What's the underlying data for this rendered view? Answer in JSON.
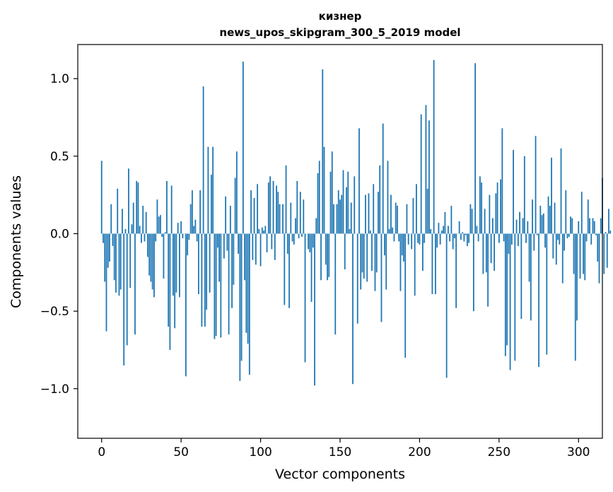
{
  "chart_data": {
    "type": "bar",
    "title_line1": "кизнер",
    "title_line2": "news_upos_skipgram_300_5_2019 model",
    "xlabel": "Vector components",
    "ylabel": "Components values",
    "xlim": [
      -15,
      315
    ],
    "ylim": [
      -1.32,
      1.22
    ],
    "xticks": [
      {
        "v": 0,
        "label": "0"
      },
      {
        "v": 50,
        "label": "50"
      },
      {
        "v": 100,
        "label": "100"
      },
      {
        "v": 150,
        "label": "150"
      },
      {
        "v": 200,
        "label": "200"
      },
      {
        "v": 250,
        "label": "250"
      },
      {
        "v": 300,
        "label": "300"
      }
    ],
    "yticks": [
      {
        "v": -1.0,
        "label": "−1.0"
      },
      {
        "v": -0.5,
        "label": "−0.5"
      },
      {
        "v": 0.0,
        "label": "0.0"
      },
      {
        "v": 0.5,
        "label": "0.5"
      },
      {
        "v": 1.0,
        "label": "1.0"
      }
    ],
    "bar_color": "#1f77b4",
    "values": [
      0.47,
      -0.06,
      -0.31,
      -0.63,
      -0.22,
      -0.18,
      0.19,
      -0.08,
      -0.3,
      -0.38,
      0.29,
      -0.4,
      -0.36,
      0.16,
      -0.85,
      0.03,
      -0.72,
      0.42,
      -0.35,
      0.06,
      0.2,
      -0.65,
      0.34,
      0.33,
      0.05,
      -0.06,
      0.18,
      -0.05,
      0.14,
      -0.15,
      -0.27,
      -0.31,
      -0.36,
      -0.41,
      -0.05,
      0.22,
      0.11,
      0.12,
      -0.02,
      -0.29,
      0.01,
      0.34,
      -0.6,
      -0.75,
      0.31,
      -0.4,
      -0.61,
      -0.38,
      0.07,
      -0.41,
      0.08,
      -0.03,
      0.0,
      -0.92,
      -0.14,
      -0.04,
      0.19,
      0.28,
      0.05,
      0.09,
      -0.05,
      -0.39,
      0.28,
      -0.6,
      0.95,
      -0.6,
      -0.49,
      0.56,
      -0.38,
      0.38,
      0.56,
      -0.68,
      -0.66,
      -0.09,
      -0.31,
      -0.67,
      0.0,
      -0.16,
      0.24,
      -0.11,
      -0.65,
      0.18,
      -0.48,
      -0.33,
      0.36,
      0.53,
      -0.13,
      -0.95,
      -0.82,
      1.11,
      -0.3,
      -0.64,
      -0.71,
      -0.91,
      0.28,
      -0.17,
      0.23,
      -0.2,
      0.32,
      0.03,
      -0.21,
      0.04,
      0.02,
      0.05,
      -0.12,
      0.33,
      0.37,
      -0.1,
      0.34,
      -0.17,
      0.31,
      0.27,
      0.19,
      0.0,
      0.19,
      -0.46,
      0.44,
      -0.13,
      -0.48,
      0.2,
      -0.05,
      -0.07,
      0.1,
      0.34,
      -0.03,
      0.27,
      -0.02,
      0.22,
      -0.83,
      0.0,
      -0.1,
      -0.12,
      -0.44,
      -0.09,
      -0.98,
      0.1,
      0.39,
      0.47,
      -0.3,
      1.06,
      0.56,
      -0.2,
      -0.3,
      -0.28,
      0.4,
      0.53,
      0.19,
      -0.65,
      0.19,
      0.28,
      0.22,
      0.25,
      0.41,
      -0.23,
      0.3,
      0.4,
      0.03,
      0.2,
      -0.97,
      0.37,
      0.0,
      -0.58,
      0.68,
      -0.36,
      -0.25,
      -0.29,
      0.25,
      -0.31,
      0.26,
      0.02,
      -0.24,
      0.32,
      -0.37,
      -0.25,
      0.27,
      0.44,
      -0.57,
      0.71,
      -0.14,
      -0.36,
      0.47,
      0.03,
      0.25,
      0.04,
      -0.05,
      0.2,
      0.18,
      -0.05,
      -0.37,
      -0.14,
      -0.18,
      -0.8,
      0.19,
      -0.07,
      0.0,
      -0.1,
      0.23,
      -0.4,
      0.32,
      -0.06,
      -0.07,
      0.77,
      -0.24,
      -0.06,
      0.83,
      0.29,
      0.73,
      0.03,
      -0.39,
      1.12,
      -0.39,
      -0.09,
      0.07,
      -0.07,
      0.02,
      0.05,
      0.14,
      -0.93,
      0.05,
      -0.05,
      0.18,
      -0.1,
      -0.03,
      -0.48,
      0.0,
      0.08,
      -0.04,
      0.01,
      -0.05,
      -0.01,
      -0.08,
      -0.06,
      0.19,
      0.16,
      -0.5,
      1.1,
      0.05,
      -0.05,
      0.37,
      0.33,
      -0.26,
      0.16,
      -0.25,
      -0.47,
      0.25,
      -0.19,
      0.1,
      -0.24,
      0.26,
      0.33,
      -0.06,
      0.35,
      0.68,
      -0.05,
      -0.79,
      -0.72,
      -0.13,
      -0.88,
      -0.07,
      0.54,
      -0.82,
      0.09,
      -0.08,
      0.14,
      -0.55,
      0.1,
      0.5,
      -0.06,
      0.08,
      -0.31,
      -0.56,
      0.22,
      -0.11,
      0.63,
      -0.01,
      -0.86,
      0.18,
      0.12,
      0.13,
      -0.09,
      -0.78,
      0.24,
      0.18,
      0.49,
      -0.16,
      0.2,
      -0.2,
      -0.04,
      -0.07,
      0.55,
      -0.32,
      -0.11,
      0.28,
      -0.03,
      -0.02,
      0.11,
      0.1,
      -0.26,
      -0.82,
      -0.56,
      0.08,
      -0.29,
      0.27,
      -0.26,
      -0.3,
      -0.05,
      0.22,
      0.1,
      -0.07,
      0.1,
      0.08,
      -0.01,
      -0.18,
      -0.32,
      0.1,
      0.36,
      -0.26,
      0.01,
      -0.22,
      0.16,
      0.02
    ]
  }
}
